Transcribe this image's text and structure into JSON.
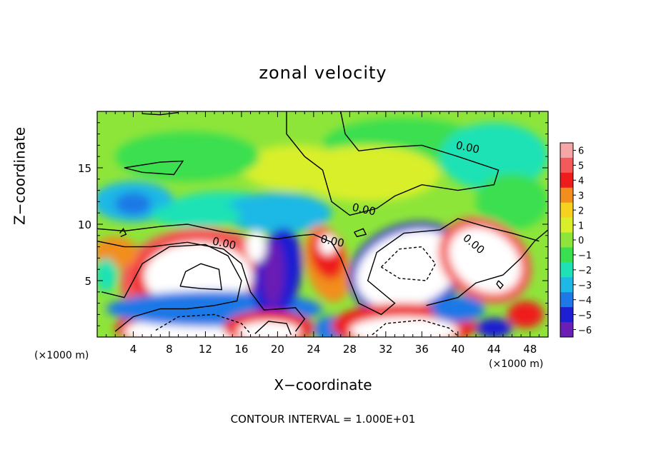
{
  "chart_data": {
    "type": "heatmap",
    "title": "zonal velocity",
    "xlabel": "X−coordinate",
    "ylabel": "Z−coordinate",
    "x_unit": "(×1000 m)",
    "z_unit": "(×1000 m)",
    "xlim": [
      0,
      50
    ],
    "ylim": [
      0,
      20
    ],
    "xticks": [
      4,
      8,
      12,
      16,
      20,
      24,
      28,
      32,
      36,
      40,
      44,
      48
    ],
    "yticks": [
      5,
      10,
      15
    ],
    "colorbar": {
      "ticks": [
        6,
        5,
        4,
        3,
        2,
        1,
        0,
        -1,
        -2,
        -3,
        -4,
        -5,
        -6
      ],
      "colors": [
        "#f6a6a6",
        "#f45a5a",
        "#ee1c1c",
        "#f28e1e",
        "#f6d21e",
        "#d9ef2a",
        "#8ee53a",
        "#3adf50",
        "#1ee2b6",
        "#1eb8e6",
        "#1e78e6",
        "#1e1ed2",
        "#6a1eb4"
      ],
      "tick_labels": [
        "6",
        "5",
        "4",
        "3",
        "2",
        "1",
        "0",
        "−1",
        "−2",
        "−3",
        "−4",
        "−5",
        "−6"
      ]
    },
    "contour_labels": [
      "0.00",
      "0.00",
      "0.00",
      "0.00",
      "0.00"
    ],
    "contour_interval_text": "CONTOUR INTERVAL = 1.000E+01"
  }
}
